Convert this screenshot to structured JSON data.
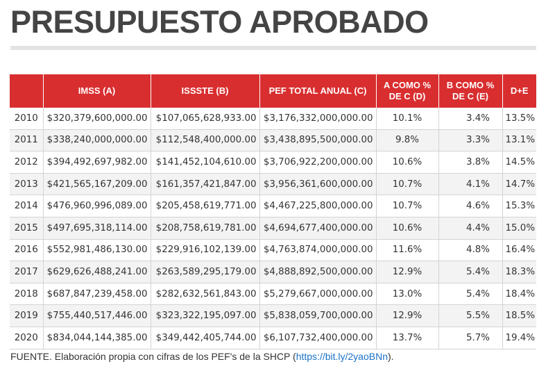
{
  "title": "PRESUPUESTO APROBADO",
  "table": {
    "headers": [
      "",
      "IMSS (A)",
      "ISSSTE (B)",
      "PEF TOTAL ANUAL (C)",
      "A COMO % DE C (D)",
      "B COMO % DE C (E)",
      "D+E"
    ],
    "rows": [
      [
        "2010",
        "$320,379,600,000.00",
        "$107,065,628,933.00",
        "$3,176,332,000,000.00",
        "10.1%",
        "3.4%",
        "13.5%"
      ],
      [
        "2011",
        "$338,240,000,000.00",
        "$112,548,400,000.00",
        "$3,438,895,500,000.00",
        "9.8%",
        "3.3%",
        "13.1%"
      ],
      [
        "2012",
        "$394,492,697,982.00",
        "$141,452,104,610.00",
        "$3,706,922,200,000.00",
        "10.6%",
        "3.8%",
        "14.5%"
      ],
      [
        "2013",
        "$421,565,167,209.00",
        "$161,357,421,847.00",
        "$3,956,361,600,000.00",
        "10.7%",
        "4.1%",
        "14.7%"
      ],
      [
        "2014",
        "$476,960,996,089.00",
        "$205,458,619,771.00",
        "$4,467,225,800,000.00",
        "10.7%",
        "4.6%",
        "15.3%"
      ],
      [
        "2015",
        "$497,695,318,114.00",
        "$208,758,619,781.00",
        "$4,694,677,400,000.00",
        "10.6%",
        "4.4%",
        "15.0%"
      ],
      [
        "2016",
        "$552,981,486,130.00",
        "$229,916,102,139.00",
        "$4,763,874,000,000.00",
        "11.6%",
        "4.8%",
        "16.4%"
      ],
      [
        "2017",
        "$629,626,488,241.00",
        "$263,589,295,179.00",
        "$4,888,892,500,000.00",
        "12.9%",
        "5.4%",
        "18.3%"
      ],
      [
        "2018",
        "$687,847,239,458.00",
        "$282,632,561,843.00",
        "$5,279,667,000,000.00",
        "13.0%",
        "5.4%",
        "18.4%"
      ],
      [
        "2019",
        "$755,440,517,446.00",
        "$323,322,195,097.00",
        "$5,838,059,700,000.00",
        "12.9%",
        "5.5%",
        "18.5%"
      ],
      [
        "2020",
        "$834,044,144,385.00",
        "$349,442,405,744.00",
        "$6,107,732,400,000.00",
        "13.7%",
        "5.7%",
        "19.4%"
      ]
    ]
  },
  "source": {
    "prefix": "FUENTE. Elaboración propia con cifras de los PEF's de la SHCP (",
    "link": "https://bit.ly/2yaoBNn",
    "suffix": ")."
  },
  "colors": {
    "header_bg": "#d92e2f",
    "title_text": "#444444",
    "link": "#1a73c9"
  }
}
